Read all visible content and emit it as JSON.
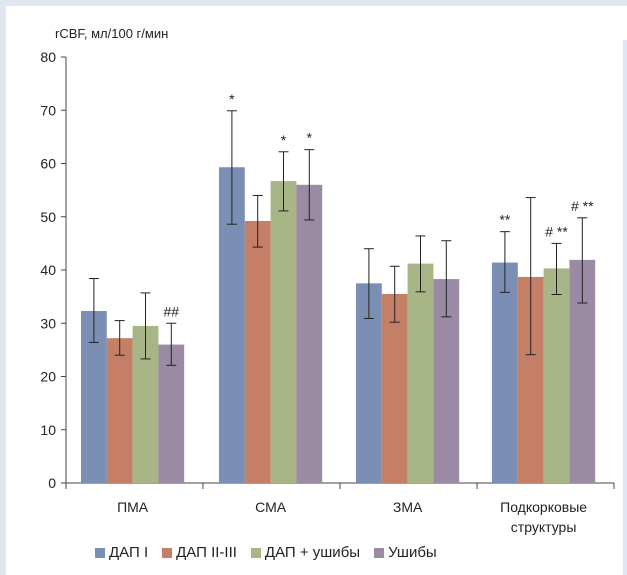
{
  "chart_data": {
    "type": "bar",
    "ylabel": "rCBF, мл/100 г/мин",
    "ylim": [
      0,
      80
    ],
    "yticks": [
      0,
      10,
      20,
      30,
      40,
      50,
      60,
      70,
      80
    ],
    "categories": [
      [
        "ПМА"
      ],
      [
        "СМА"
      ],
      [
        "ЗМА"
      ],
      [
        "Подкорковые",
        "структуры"
      ]
    ],
    "series": [
      {
        "name": "ДАП I",
        "color": "#7a8fb3",
        "values": [
          32.3,
          59.3,
          37.5,
          41.4
        ],
        "errors": [
          [
            26.4,
            38.4
          ],
          [
            48.6,
            69.9
          ],
          [
            30.9,
            44.0
          ],
          [
            35.8,
            47.2
          ]
        ],
        "annotations": [
          "",
          "*",
          "",
          "**"
        ]
      },
      {
        "name": "ДАП II-III",
        "color": "#c47f66",
        "values": [
          27.2,
          49.2,
          35.5,
          38.7
        ],
        "errors": [
          [
            24.0,
            30.5
          ],
          [
            44.3,
            54.0
          ],
          [
            30.2,
            40.7
          ],
          [
            24.1,
            53.6
          ]
        ],
        "annotations": [
          "",
          "",
          "",
          ""
        ]
      },
      {
        "name": "ДАП + ушибы",
        "color": "#a8b586",
        "values": [
          29.5,
          56.7,
          41.2,
          40.3
        ],
        "errors": [
          [
            23.3,
            35.7
          ],
          [
            51.1,
            62.2
          ],
          [
            35.9,
            46.4
          ],
          [
            35.4,
            45.0
          ]
        ],
        "annotations": [
          "",
          "*",
          "",
          "# **"
        ]
      },
      {
        "name": "Ушибы",
        "color": "#9b8aa3",
        "values": [
          26.0,
          56.0,
          38.3,
          41.9
        ],
        "errors": [
          [
            22.1,
            30.0
          ],
          [
            49.4,
            62.6
          ],
          [
            31.2,
            45.5
          ],
          [
            33.8,
            49.8
          ]
        ],
        "annotations": [
          "##",
          "*",
          "",
          "# **"
        ]
      }
    ],
    "grid": false,
    "legend": "bottom"
  }
}
